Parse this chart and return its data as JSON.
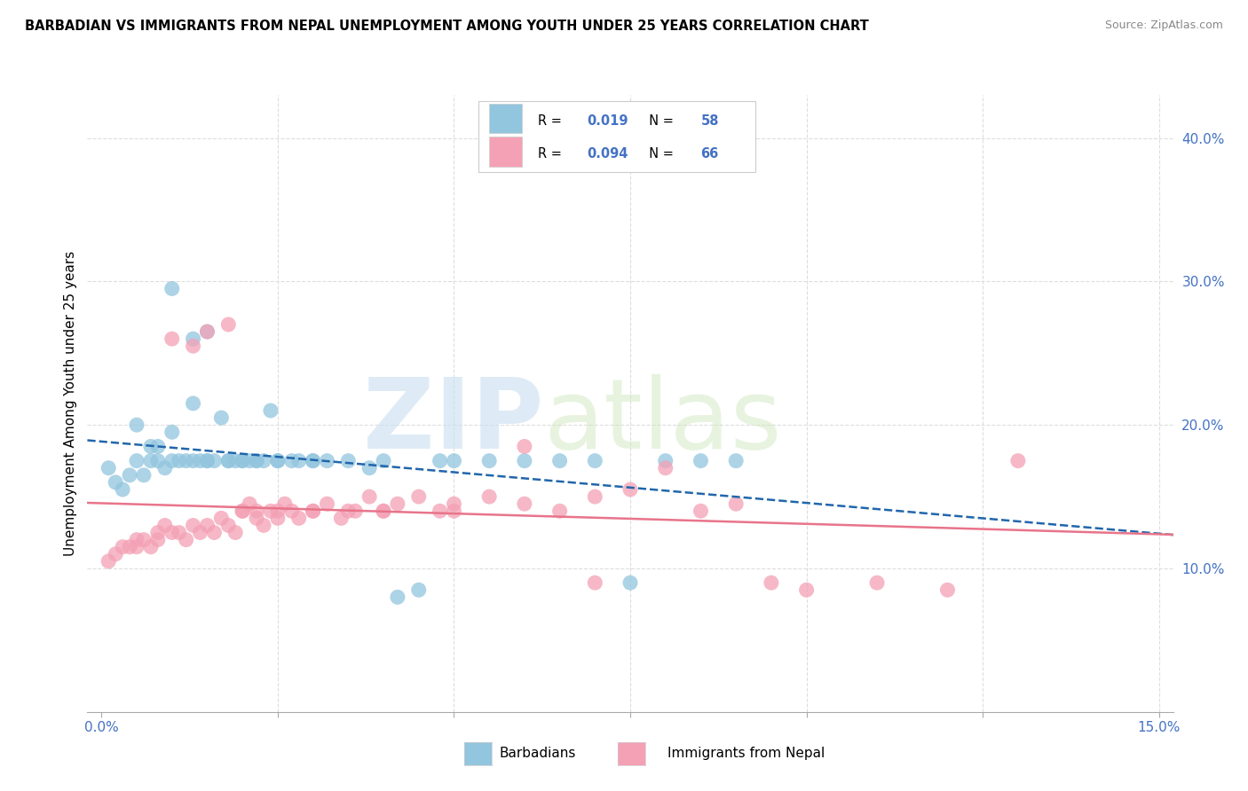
{
  "title": "BARBADIAN VS IMMIGRANTS FROM NEPAL UNEMPLOYMENT AMONG YOUTH UNDER 25 YEARS CORRELATION CHART",
  "source": "Source: ZipAtlas.com",
  "ylabel": "Unemployment Among Youth under 25 years",
  "xlim": [
    -0.002,
    0.152
  ],
  "ylim": [
    0.0,
    0.43
  ],
  "xticks": [
    0.0,
    0.025,
    0.05,
    0.075,
    0.1,
    0.125,
    0.15
  ],
  "xticklabels": [
    "0.0%",
    "",
    "",
    "",
    "",
    "",
    "15.0%"
  ],
  "yticks_right": [
    0.1,
    0.2,
    0.3,
    0.4
  ],
  "yticklabels_right": [
    "10.0%",
    "20.0%",
    "30.0%",
    "40.0%"
  ],
  "color_blue": "#92c5de",
  "color_pink": "#f4a0b5",
  "line_color_blue": "#2166ac",
  "line_color_pink": "#e8748a",
  "watermark_zip": "ZIP",
  "watermark_atlas": "atlas",
  "background_color": "#ffffff",
  "grid_color": "#dddddd",
  "blue_x": [
    0.001,
    0.002,
    0.003,
    0.004,
    0.005,
    0.005,
    0.006,
    0.007,
    0.007,
    0.008,
    0.008,
    0.009,
    0.01,
    0.01,
    0.011,
    0.012,
    0.013,
    0.013,
    0.014,
    0.015,
    0.015,
    0.016,
    0.017,
    0.018,
    0.019,
    0.02,
    0.021,
    0.022,
    0.023,
    0.024,
    0.025,
    0.027,
    0.028,
    0.03,
    0.032,
    0.035,
    0.038,
    0.04,
    0.042,
    0.045,
    0.048,
    0.05,
    0.055,
    0.06,
    0.065,
    0.07,
    0.075,
    0.08,
    0.085,
    0.09,
    0.01,
    0.013,
    0.015,
    0.018,
    0.02,
    0.022,
    0.025,
    0.03
  ],
  "blue_y": [
    0.17,
    0.16,
    0.155,
    0.165,
    0.2,
    0.175,
    0.165,
    0.175,
    0.185,
    0.175,
    0.185,
    0.17,
    0.175,
    0.195,
    0.175,
    0.175,
    0.215,
    0.175,
    0.175,
    0.175,
    0.175,
    0.175,
    0.205,
    0.175,
    0.175,
    0.175,
    0.175,
    0.175,
    0.175,
    0.21,
    0.175,
    0.175,
    0.175,
    0.175,
    0.175,
    0.175,
    0.17,
    0.175,
    0.08,
    0.085,
    0.175,
    0.175,
    0.175,
    0.175,
    0.175,
    0.175,
    0.09,
    0.175,
    0.175,
    0.175,
    0.295,
    0.26,
    0.265,
    0.175,
    0.175,
    0.175,
    0.175,
    0.175
  ],
  "pink_x": [
    0.001,
    0.002,
    0.003,
    0.004,
    0.005,
    0.005,
    0.006,
    0.007,
    0.008,
    0.008,
    0.009,
    0.01,
    0.011,
    0.012,
    0.013,
    0.014,
    0.015,
    0.016,
    0.017,
    0.018,
    0.019,
    0.02,
    0.021,
    0.022,
    0.023,
    0.024,
    0.025,
    0.026,
    0.027,
    0.028,
    0.03,
    0.032,
    0.034,
    0.036,
    0.038,
    0.04,
    0.042,
    0.045,
    0.048,
    0.05,
    0.055,
    0.06,
    0.065,
    0.07,
    0.075,
    0.08,
    0.085,
    0.09,
    0.095,
    0.1,
    0.11,
    0.12,
    0.13,
    0.01,
    0.013,
    0.015,
    0.018,
    0.02,
    0.022,
    0.025,
    0.03,
    0.035,
    0.04,
    0.05,
    0.06,
    0.07
  ],
  "pink_y": [
    0.105,
    0.11,
    0.115,
    0.115,
    0.12,
    0.115,
    0.12,
    0.115,
    0.125,
    0.12,
    0.13,
    0.125,
    0.125,
    0.12,
    0.13,
    0.125,
    0.13,
    0.125,
    0.135,
    0.13,
    0.125,
    0.14,
    0.145,
    0.135,
    0.13,
    0.14,
    0.135,
    0.145,
    0.14,
    0.135,
    0.14,
    0.145,
    0.135,
    0.14,
    0.15,
    0.14,
    0.145,
    0.15,
    0.14,
    0.145,
    0.15,
    0.145,
    0.14,
    0.15,
    0.155,
    0.17,
    0.14,
    0.145,
    0.09,
    0.085,
    0.09,
    0.085,
    0.175,
    0.26,
    0.255,
    0.265,
    0.27,
    0.14,
    0.14,
    0.14,
    0.14,
    0.14,
    0.14,
    0.14,
    0.185,
    0.09
  ]
}
